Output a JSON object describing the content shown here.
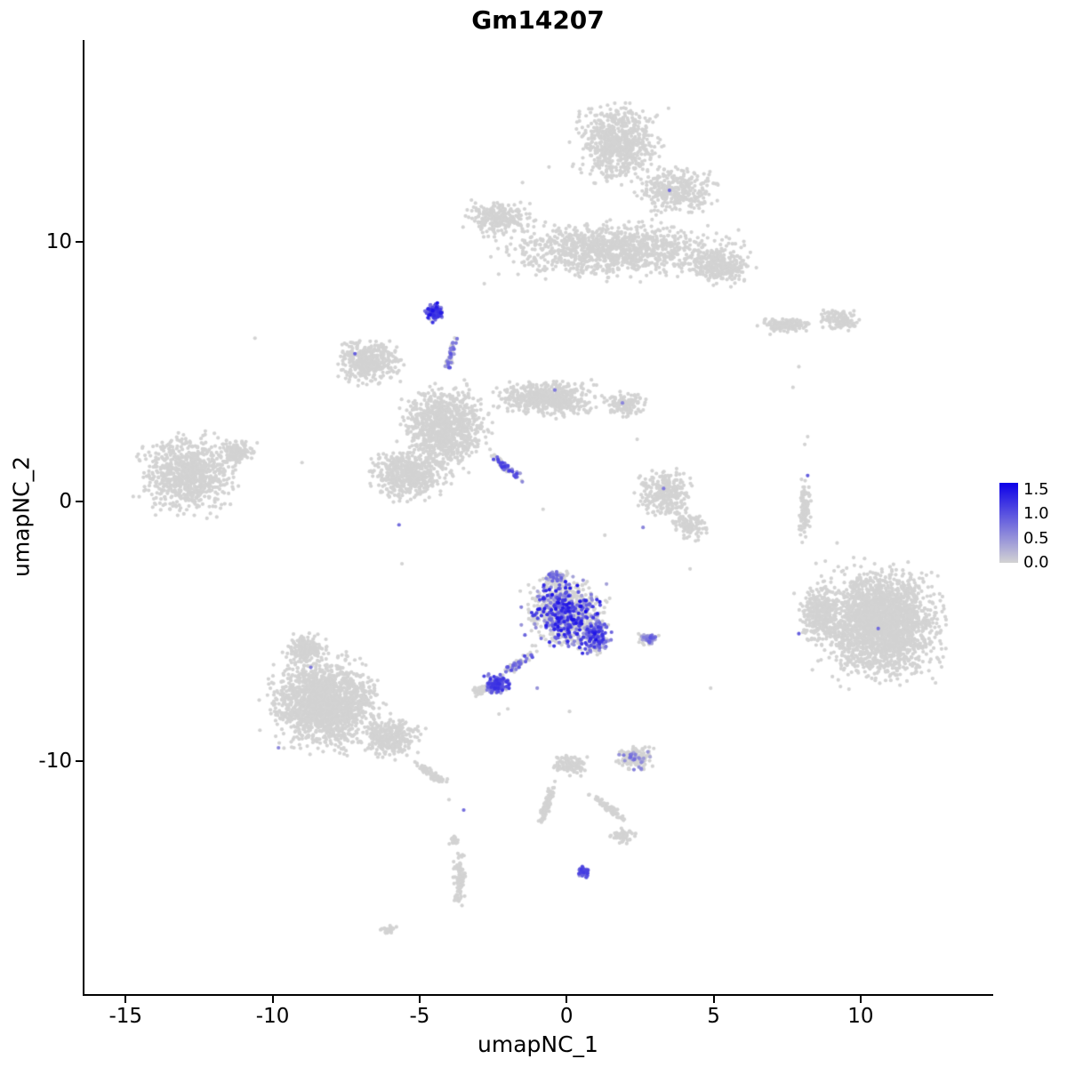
{
  "chart_data": {
    "type": "scatter",
    "title": "Gm14207",
    "xlabel": "umapNC_1",
    "ylabel": "umapNC_2",
    "xlim": [
      -16.4,
      14.45
    ],
    "ylim": [
      -19.0,
      17.8
    ],
    "x_ticks": [
      -15,
      -10,
      -5,
      0,
      5,
      10
    ],
    "y_ticks": [
      -10,
      0,
      10
    ],
    "grid": false,
    "legend_position": "right",
    "point_radius_px": 2.1,
    "colorbar": {
      "low_color": "#D3D3D3",
      "high_color": "#0C00E8",
      "tick_values": [
        1.5,
        1.0,
        0.5,
        0.0
      ],
      "scale_max": 1.65
    },
    "clusters": [
      {
        "name": "top-knob",
        "cx": 1.75,
        "cy": 13.8,
        "rx": 1.8,
        "ry": 1.9,
        "n": 700
      },
      {
        "name": "top-neck",
        "cx": 3.7,
        "cy": 12.0,
        "rx": 1.7,
        "ry": 1.2,
        "n": 320
      },
      {
        "name": "top-band",
        "cx": 1.6,
        "cy": 9.7,
        "rx": 4.6,
        "ry": 1.35,
        "n": 1100
      },
      {
        "name": "top-left-arm",
        "cx": -2.3,
        "cy": 10.9,
        "rx": 1.4,
        "ry": 0.85,
        "n": 240
      },
      {
        "name": "top-right-lobe",
        "cx": 5.2,
        "cy": 9.1,
        "rx": 1.4,
        "ry": 1.0,
        "n": 300
      },
      {
        "name": "ne-island-1",
        "cx": 7.5,
        "cy": 6.8,
        "rx": 1.2,
        "ry": 0.4,
        "n": 130
      },
      {
        "name": "ne-island-2",
        "cx": 9.3,
        "cy": 7.0,
        "rx": 0.95,
        "ry": 0.5,
        "n": 120
      },
      {
        "name": "west",
        "cx": -12.9,
        "cy": 1.0,
        "rx": 2.1,
        "ry": 1.8,
        "n": 850
      },
      {
        "name": "west-tip",
        "cx": -11.2,
        "cy": 1.9,
        "rx": 0.75,
        "ry": 0.6,
        "n": 140
      },
      {
        "name": "cross-left-lobe",
        "cx": -6.7,
        "cy": 5.4,
        "rx": 1.35,
        "ry": 1.05,
        "n": 420
      },
      {
        "name": "cross-core",
        "cx": -4.15,
        "cy": 2.85,
        "rx": 1.8,
        "ry": 2.0,
        "n": 950
      },
      {
        "name": "cross-right-arm",
        "cx": -0.65,
        "cy": 4.0,
        "rx": 2.25,
        "ry": 0.85,
        "n": 520
      },
      {
        "name": "cross-arm-tip",
        "cx": 2.0,
        "cy": 3.75,
        "rx": 0.9,
        "ry": 0.6,
        "n": 140
      },
      {
        "name": "cross-bottom-lobe",
        "cx": -5.35,
        "cy": 1.0,
        "rx": 1.65,
        "ry": 1.2,
        "n": 520
      },
      {
        "name": "cross-streak",
        "cx": -2.1,
        "cy": 1.35,
        "rx": 1.05,
        "ry": 0.22,
        "rot": -42,
        "n": 80,
        "p": 0.5,
        "vmin": 0.4,
        "vmax": 1.2
      },
      {
        "name": "purple-knot",
        "cx": -4.5,
        "cy": 7.3,
        "rx": 0.4,
        "ry": 0.45,
        "n": 110,
        "p": 0.92,
        "vmin": 0.5,
        "vmax": 1.5
      },
      {
        "name": "purple-trail",
        "cx": -3.95,
        "cy": 5.6,
        "rx": 0.14,
        "ry": 1.1,
        "rot": -14,
        "n": 55,
        "p": 0.65,
        "vmin": 0.3,
        "vmax": 1.0
      },
      {
        "name": "mid-right",
        "cx": 3.3,
        "cy": 0.3,
        "rx": 1.2,
        "ry": 1.2,
        "n": 270
      },
      {
        "name": "mid-right-lower",
        "cx": 4.2,
        "cy": -0.9,
        "rx": 0.75,
        "ry": 0.7,
        "n": 110
      },
      {
        "name": "right-sliver",
        "cx": 8.1,
        "cy": -0.4,
        "rx": 0.25,
        "ry": 1.65,
        "n": 110
      },
      {
        "name": "east-main",
        "cx": 10.65,
        "cy": -4.7,
        "rx": 2.6,
        "ry": 2.7,
        "n": 2300
      },
      {
        "name": "east-left-edge",
        "cx": 8.6,
        "cy": -4.3,
        "rx": 0.9,
        "ry": 1.55,
        "n": 300
      },
      {
        "name": "hub-core",
        "cx": -0.05,
        "cy": -4.3,
        "rx": 1.55,
        "ry": 1.65,
        "n": 620,
        "p": 0.5,
        "vmin": 0.3,
        "vmax": 1.5
      },
      {
        "name": "hub-halo",
        "cx": -0.1,
        "cy": -4.2,
        "rx": 1.7,
        "ry": 1.8,
        "n": 330,
        "p": 0.08,
        "vmin": 0.3,
        "vmax": 0.8
      },
      {
        "name": "hub-right-bulge",
        "cx": 0.95,
        "cy": -5.2,
        "rx": 0.65,
        "ry": 0.95,
        "n": 200,
        "p": 0.5,
        "vmin": 0.3,
        "vmax": 1.3
      },
      {
        "name": "hub-top-knob",
        "cx": -0.35,
        "cy": -2.9,
        "rx": 0.55,
        "ry": 0.35,
        "n": 90,
        "p": 0.35,
        "vmin": 0.3,
        "vmax": 1.0
      },
      {
        "name": "hub-tail",
        "cx": -1.65,
        "cy": -6.25,
        "rx": 0.85,
        "ry": 0.2,
        "rot": 38,
        "n": 70,
        "p": 0.55,
        "vmin": 0.3,
        "vmax": 1.1
      },
      {
        "name": "hub-foot",
        "cx": -2.4,
        "cy": -7.05,
        "rx": 0.52,
        "ry": 0.45,
        "n": 150,
        "p": 0.85,
        "vmin": 0.4,
        "vmax": 1.3
      },
      {
        "name": "hub-foot-fringe",
        "cx": -2.95,
        "cy": -7.3,
        "rx": 0.35,
        "ry": 0.3,
        "n": 40
      },
      {
        "name": "hub-appendage",
        "cx": 2.8,
        "cy": -5.3,
        "rx": 0.5,
        "ry": 0.28,
        "n": 60,
        "p": 0.55,
        "vmin": 0.3,
        "vmax": 1.0
      },
      {
        "name": "sw-main",
        "cx": -8.2,
        "cy": -7.8,
        "rx": 2.35,
        "ry": 2.2,
        "n": 1700
      },
      {
        "name": "sw-right",
        "cx": -5.95,
        "cy": -9.1,
        "rx": 1.2,
        "ry": 1.0,
        "n": 330
      },
      {
        "name": "sw-tail",
        "cx": -4.6,
        "cy": -10.5,
        "rx": 0.8,
        "ry": 0.2,
        "rot": -38,
        "n": 90
      },
      {
        "name": "sw-top-point",
        "cx": -8.85,
        "cy": -5.7,
        "rx": 0.9,
        "ry": 0.7,
        "n": 190
      },
      {
        "name": "jelly-right",
        "cx": 2.35,
        "cy": -9.9,
        "rx": 0.85,
        "ry": 0.55,
        "n": 150,
        "p": 0.2,
        "vmin": 0.3,
        "vmax": 0.9
      },
      {
        "name": "jelly-left",
        "cx": 0.1,
        "cy": -10.2,
        "rx": 0.75,
        "ry": 0.5,
        "n": 100
      },
      {
        "name": "jelly-arm-left",
        "cx": -0.7,
        "cy": -11.8,
        "rx": 0.22,
        "ry": 1.15,
        "rot": -16,
        "n": 90
      },
      {
        "name": "jelly-arm-right",
        "cx": 1.4,
        "cy": -11.8,
        "rx": 1.1,
        "ry": 0.18,
        "rot": -42,
        "n": 80
      },
      {
        "name": "jelly-foot",
        "cx": 1.9,
        "cy": -12.9,
        "rx": 0.55,
        "ry": 0.35,
        "n": 60
      },
      {
        "name": "bottom-sliver",
        "cx": -3.65,
        "cy": -14.6,
        "rx": 0.28,
        "ry": 1.3,
        "n": 110
      },
      {
        "name": "bottom-sliver-cap",
        "cx": -3.8,
        "cy": -13.1,
        "rx": 0.2,
        "ry": 0.25,
        "n": 25
      },
      {
        "name": "bottom-purple-dot",
        "cx": 0.6,
        "cy": -14.3,
        "rx": 0.27,
        "ry": 0.3,
        "n": 50,
        "p": 0.9,
        "vmin": 0.4,
        "vmax": 1.2
      },
      {
        "name": "sw-speck",
        "cx": -6.05,
        "cy": -16.5,
        "rx": 0.38,
        "ry": 0.2,
        "n": 35
      }
    ],
    "gray_singles": [
      [
        -10.6,
        6.3
      ],
      [
        -2.8,
        8.4
      ],
      [
        -1.5,
        12.3
      ],
      [
        -0.6,
        12.9
      ],
      [
        4.2,
        -2.6
      ],
      [
        4.9,
        -7.2
      ],
      [
        1.3,
        -1.3
      ],
      [
        2.4,
        2.4
      ],
      [
        8.1,
        2.2
      ],
      [
        8.2,
        2.5
      ],
      [
        -0.8,
        -0.3
      ],
      [
        -9.0,
        1.5
      ],
      [
        -5.6,
        -2.4
      ],
      [
        -4.0,
        -11.5
      ],
      [
        7.7,
        4.4
      ],
      [
        7.9,
        5.2
      ],
      [
        9.2,
        -1.6
      ],
      [
        8.8,
        -2.3
      ],
      [
        -2.3,
        -8.2
      ],
      [
        -2.0,
        -8.0
      ],
      [
        0.1,
        -8.1
      ]
    ],
    "expressing_singles": [
      [
        3.5,
        12.0,
        0.8
      ],
      [
        -7.2,
        5.7,
        0.9
      ],
      [
        -0.4,
        4.3,
        0.7
      ],
      [
        1.9,
        3.8,
        0.6
      ],
      [
        -5.7,
        -0.9,
        0.8
      ],
      [
        3.3,
        0.5,
        0.7
      ],
      [
        2.6,
        -1.0,
        0.6
      ],
      [
        8.2,
        1.0,
        0.9
      ],
      [
        10.6,
        -4.9,
        0.8
      ],
      [
        7.9,
        -5.1,
        0.9
      ],
      [
        -8.7,
        -6.4,
        0.7
      ],
      [
        -9.8,
        -9.5,
        0.6
      ],
      [
        -3.5,
        -11.9,
        0.8
      ],
      [
        0.65,
        -4.25,
        1.6
      ],
      [
        -1.0,
        -7.2,
        0.5
      ]
    ]
  }
}
